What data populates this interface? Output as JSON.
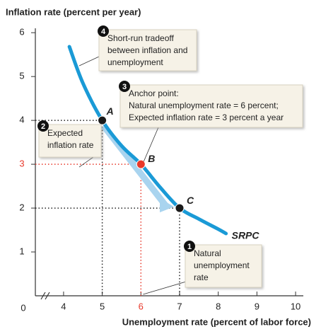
{
  "chart_data": {
    "type": "line",
    "y_axis_title": "Inflation rate (percent per year)",
    "x_axis_title": "Unemployment rate (percent of labor force)",
    "origin_label": "0",
    "xlim": [
      3.27,
      10.2
    ],
    "ylim": [
      0,
      6.1
    ],
    "xticks": [
      4,
      5,
      6,
      7,
      8,
      9,
      10
    ],
    "yticks": [
      1,
      2,
      3,
      4,
      5,
      6
    ],
    "series": [
      {
        "name": "SRPC",
        "color": "#1a9ad6",
        "x": [
          4.15,
          4.5,
          5,
          5.5,
          6,
          6.5,
          7,
          7.5,
          8,
          8.2
        ],
        "values": [
          5.68,
          4.85,
          4,
          3.42,
          3,
          2.47,
          2,
          1.75,
          1.52,
          1.42
        ]
      }
    ],
    "points": [
      {
        "label": "A",
        "x": 5,
        "y": 4,
        "color": "#1a1a1a"
      },
      {
        "label": "B",
        "x": 6,
        "y": 3,
        "color": "#e8392b"
      },
      {
        "label": "C",
        "x": 7,
        "y": 2,
        "color": "#1a1a1a"
      }
    ],
    "annotations": [
      {
        "number": "1",
        "lines": [
          "Natural",
          "unemployment",
          "rate"
        ]
      },
      {
        "number": "2",
        "lines": [
          "Expected",
          "inflation rate"
        ]
      },
      {
        "number": "3",
        "lines": [
          "Anchor point:",
          "Natural unemployment rate = 6 percent;",
          "Expected inflation rate = 3 percent a year"
        ]
      },
      {
        "number": "4",
        "lines": [
          "Short-run tradeoff",
          "between inflation and",
          "unemployment"
        ]
      }
    ]
  }
}
